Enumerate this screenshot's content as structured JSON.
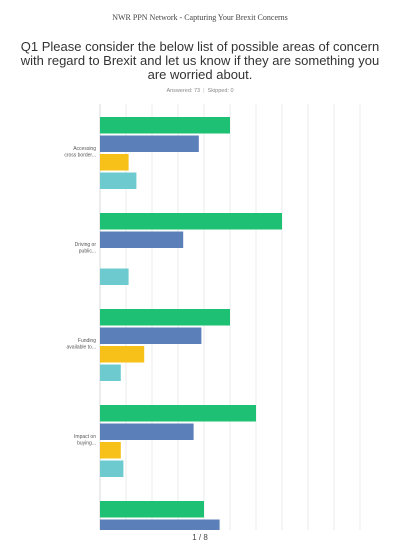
{
  "header": {
    "title": "NWR PPN Network - Capturing Your Brexit Concerns"
  },
  "question": {
    "text": "Q1 Please consider the below list of possible areas of concern with regard to Brexit and let us know if they are something you are worried about."
  },
  "stats": {
    "answered": "Answered: 73",
    "skipped": "Skipped: 0"
  },
  "footer": {
    "page": "1 / 8"
  },
  "chart_data": {
    "type": "bar",
    "orientation": "horizontal",
    "grid": true,
    "xlim": [
      0,
      100
    ],
    "categories": [
      [
        "Accessing",
        "cross border..."
      ],
      [
        "Driving or",
        "public..."
      ],
      [
        "Funding",
        "available to..."
      ],
      [
        "Impact on",
        "buying..."
      ],
      [
        "",
        ""
      ]
    ],
    "series": [
      {
        "color": "#1ec173",
        "values": [
          50,
          70,
          50,
          60,
          40
        ]
      },
      {
        "color": "#5b7fb8",
        "values": [
          38,
          32,
          39,
          36,
          46
        ]
      },
      {
        "color": "#f7c119",
        "values": [
          11,
          0,
          17,
          8,
          0
        ]
      },
      {
        "color": "#6dcbd0",
        "values": [
          14,
          11,
          8,
          9,
          0
        ]
      }
    ]
  }
}
